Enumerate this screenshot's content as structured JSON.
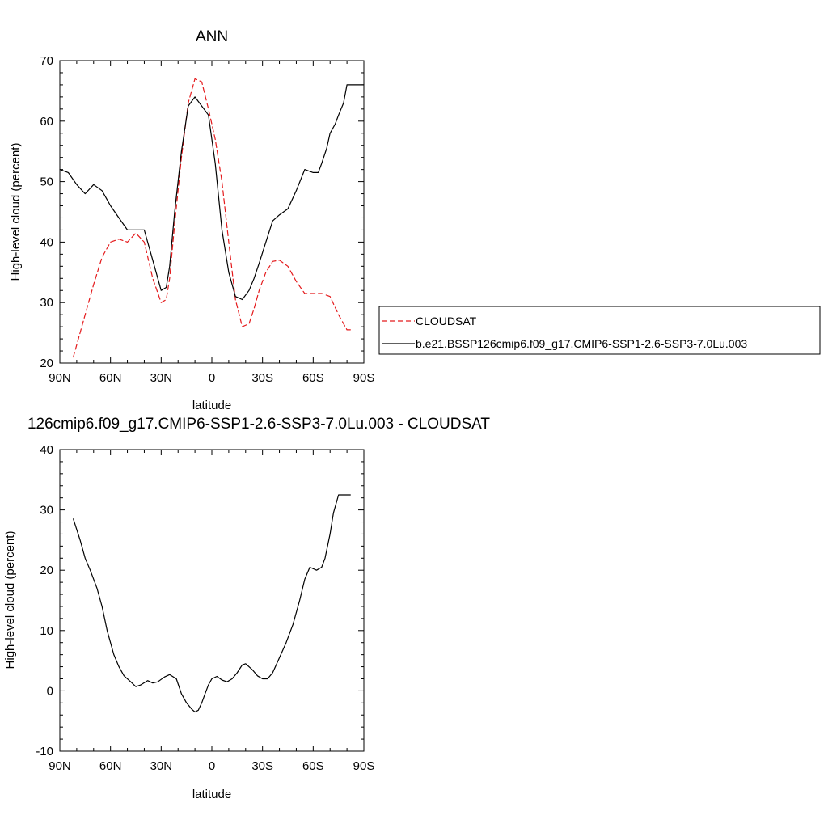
{
  "chart_data": [
    {
      "type": "line",
      "title": "ANN",
      "xlabel": "latitude",
      "ylabel": "High-level cloud (percent)",
      "xlim": [
        90,
        -90
      ],
      "ylim": [
        20,
        70
      ],
      "xticks": [
        {
          "value": 90,
          "label": "90N"
        },
        {
          "value": 60,
          "label": "60N"
        },
        {
          "value": 30,
          "label": "30N"
        },
        {
          "value": 0,
          "label": "0"
        },
        {
          "value": -30,
          "label": "30S"
        },
        {
          "value": -60,
          "label": "60S"
        },
        {
          "value": -90,
          "label": "90S"
        }
      ],
      "yticks": [
        20,
        30,
        40,
        50,
        60,
        70
      ],
      "grid": false,
      "legend": "right",
      "series": [
        {
          "name": "CLOUDSAT",
          "color": "#e41a1c",
          "dash": "dashed",
          "x": [
            82,
            75,
            70,
            65,
            60,
            55,
            50,
            45,
            40,
            35,
            30,
            27,
            25,
            22,
            18,
            14,
            10,
            6,
            2,
            -2,
            -6,
            -10,
            -14,
            -18,
            -22,
            -25,
            -28,
            -32,
            -36,
            -40,
            -45,
            -50,
            -55,
            -60,
            -65,
            -70,
            -75,
            -80,
            -82
          ],
          "y": [
            21,
            28,
            33,
            37.5,
            40,
            40.5,
            40,
            41.5,
            40,
            34,
            30,
            30.5,
            34,
            43,
            54,
            63,
            67,
            66.5,
            62,
            57,
            50,
            40,
            30.5,
            26,
            26.5,
            29,
            32,
            35,
            36.8,
            37,
            36,
            33.5,
            31.5,
            31.5,
            31.5,
            31,
            28,
            25.5,
            25.5
          ]
        },
        {
          "name": "b.e21.BSSP126cmip6.f09_g17.CMIP6-SSP1-2.6-SSP3-7.0Lu.003",
          "color": "#000000",
          "dash": "solid",
          "x": [
            90,
            85,
            80,
            75,
            70,
            65,
            60,
            55,
            50,
            45,
            40,
            35,
            30,
            27,
            25,
            22,
            18,
            14,
            10,
            6,
            2,
            -2,
            -6,
            -10,
            -14,
            -18,
            -22,
            -25,
            -28,
            -32,
            -36,
            -40,
            -45,
            -50,
            -55,
            -60,
            -63,
            -65,
            -68,
            -70,
            -73,
            -75,
            -78,
            -80,
            -82,
            -85,
            -90
          ],
          "y": [
            52,
            51.5,
            49.5,
            48,
            49.5,
            48.5,
            46,
            44,
            42,
            42,
            42,
            37,
            32,
            32.5,
            36,
            45,
            55,
            62.5,
            64,
            62.5,
            61,
            53,
            42,
            35,
            31,
            30.5,
            32,
            34,
            36.5,
            40,
            43.5,
            44.5,
            45.5,
            48.5,
            52,
            51.5,
            51.5,
            53,
            55.5,
            58,
            59.5,
            61,
            63,
            66,
            66,
            66,
            66
          ]
        }
      ]
    },
    {
      "type": "line",
      "title": "126cmip6.f09_g17.CMIP6-SSP1-2.6-SSP3-7.0Lu.003 - CLOUDSAT",
      "xlabel": "latitude",
      "ylabel": "High-level cloud (percent)",
      "xlim": [
        90,
        -90
      ],
      "ylim": [
        -10,
        40
      ],
      "xticks": [
        {
          "value": 90,
          "label": "90N"
        },
        {
          "value": 60,
          "label": "60N"
        },
        {
          "value": 30,
          "label": "30N"
        },
        {
          "value": 0,
          "label": "0"
        },
        {
          "value": -30,
          "label": "30S"
        },
        {
          "value": -60,
          "label": "60S"
        },
        {
          "value": -90,
          "label": "90S"
        }
      ],
      "yticks": [
        -10,
        0,
        10,
        20,
        30,
        40
      ],
      "grid": false,
      "legend": "none",
      "series": [
        {
          "color": "#000000",
          "dash": "solid",
          "x": [
            82,
            78,
            75,
            72,
            68,
            65,
            62,
            58,
            55,
            52,
            48,
            45,
            42,
            38,
            35,
            32,
            28,
            25,
            21,
            18,
            15,
            12,
            10,
            8,
            6,
            4,
            2,
            0,
            -3,
            -6,
            -9,
            -12,
            -15,
            -18,
            -20,
            -24,
            -27,
            -30,
            -33,
            -36,
            -40,
            -44,
            -48,
            -52,
            -55,
            -58,
            -62,
            -65,
            -67,
            -70,
            -72,
            -75,
            -78,
            -82
          ],
          "y": [
            28.5,
            25,
            22,
            20,
            17,
            14,
            10,
            6,
            4,
            2.5,
            1.5,
            0.7,
            1,
            1.7,
            1.3,
            1.5,
            2.3,
            2.7,
            2,
            -0.5,
            -2,
            -3,
            -3.5,
            -3.2,
            -2,
            -0.5,
            1,
            2,
            2.4,
            1.8,
            1.5,
            2,
            3,
            4.3,
            4.5,
            3.5,
            2.5,
            2,
            2,
            3,
            5.5,
            8,
            11,
            15,
            18.5,
            20.5,
            20,
            20.5,
            22,
            26,
            29.5,
            32.5,
            32.5,
            32.5
          ]
        }
      ]
    }
  ]
}
